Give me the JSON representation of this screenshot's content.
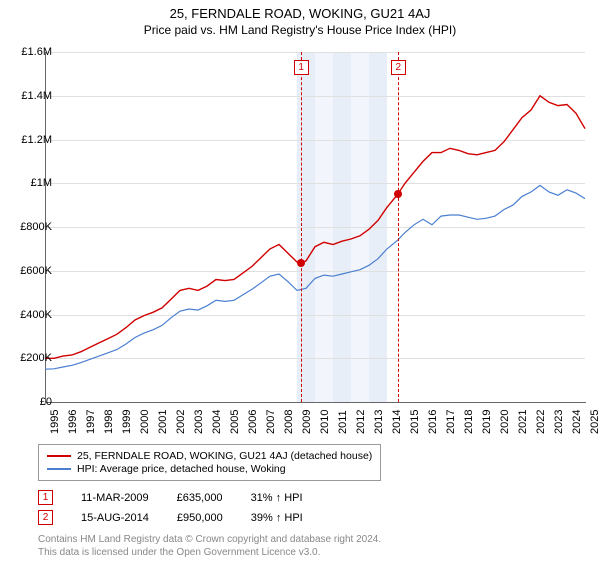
{
  "title": "25, FERNDALE ROAD, WOKING, GU21 4AJ",
  "subtitle": "Price paid vs. HM Land Registry's House Price Index (HPI)",
  "chart": {
    "type": "line",
    "x_start_year": 1995,
    "x_end_year": 2025,
    "xtick_step": 1,
    "ylim": [
      0,
      1600000
    ],
    "yticks": [
      0,
      200000,
      400000,
      600000,
      800000,
      1000000,
      1200000,
      1400000,
      1600000
    ],
    "ytick_labels": [
      "£0",
      "£200K",
      "£400K",
      "£600K",
      "£800K",
      "£1M",
      "£1.2M",
      "£1.4M",
      "£1.6M"
    ],
    "grid_color": "#e0e0e0",
    "background_bands": [
      {
        "from": 2009.0,
        "to": 2010.0,
        "color": "#e8eef8"
      },
      {
        "from": 2010.0,
        "to": 2011.0,
        "color": "#f2f5fb"
      },
      {
        "from": 2011.0,
        "to": 2012.0,
        "color": "#e8eef8"
      },
      {
        "from": 2012.0,
        "to": 2013.0,
        "color": "#f2f5fb"
      },
      {
        "from": 2013.0,
        "to": 2014.0,
        "color": "#e8eef8"
      }
    ],
    "markers": [
      {
        "label": "1",
        "year": 2009.2,
        "value": 635000
      },
      {
        "label": "2",
        "year": 2014.6,
        "value": 950000
      }
    ],
    "series": [
      {
        "name": "price",
        "label": "25, FERNDALE ROAD, WOKING, GU21 4AJ (detached house)",
        "color": "#d00000",
        "line_width": 1.4,
        "data": [
          [
            1995.0,
            200000
          ],
          [
            1995.5,
            200000
          ],
          [
            1996.0,
            210000
          ],
          [
            1996.5,
            215000
          ],
          [
            1997.0,
            230000
          ],
          [
            1997.5,
            250000
          ],
          [
            1998.0,
            270000
          ],
          [
            1998.5,
            290000
          ],
          [
            1999.0,
            310000
          ],
          [
            1999.5,
            340000
          ],
          [
            2000.0,
            375000
          ],
          [
            2000.5,
            395000
          ],
          [
            2001.0,
            410000
          ],
          [
            2001.5,
            430000
          ],
          [
            2002.0,
            470000
          ],
          [
            2002.5,
            510000
          ],
          [
            2003.0,
            520000
          ],
          [
            2003.5,
            510000
          ],
          [
            2004.0,
            530000
          ],
          [
            2004.5,
            560000
          ],
          [
            2005.0,
            555000
          ],
          [
            2005.5,
            560000
          ],
          [
            2006.0,
            590000
          ],
          [
            2006.5,
            620000
          ],
          [
            2007.0,
            660000
          ],
          [
            2007.5,
            700000
          ],
          [
            2008.0,
            720000
          ],
          [
            2008.5,
            680000
          ],
          [
            2009.0,
            640000
          ],
          [
            2009.2,
            635000
          ],
          [
            2009.5,
            645000
          ],
          [
            2010.0,
            710000
          ],
          [
            2010.5,
            730000
          ],
          [
            2011.0,
            720000
          ],
          [
            2011.5,
            735000
          ],
          [
            2012.0,
            745000
          ],
          [
            2012.5,
            760000
          ],
          [
            2013.0,
            790000
          ],
          [
            2013.5,
            830000
          ],
          [
            2014.0,
            890000
          ],
          [
            2014.6,
            950000
          ],
          [
            2015.0,
            1000000
          ],
          [
            2015.5,
            1050000
          ],
          [
            2016.0,
            1100000
          ],
          [
            2016.5,
            1140000
          ],
          [
            2017.0,
            1140000
          ],
          [
            2017.5,
            1160000
          ],
          [
            2018.0,
            1150000
          ],
          [
            2018.5,
            1135000
          ],
          [
            2019.0,
            1130000
          ],
          [
            2019.5,
            1140000
          ],
          [
            2020.0,
            1150000
          ],
          [
            2020.5,
            1190000
          ],
          [
            2021.0,
            1245000
          ],
          [
            2021.5,
            1300000
          ],
          [
            2022.0,
            1335000
          ],
          [
            2022.5,
            1400000
          ],
          [
            2023.0,
            1370000
          ],
          [
            2023.5,
            1355000
          ],
          [
            2024.0,
            1360000
          ],
          [
            2024.5,
            1320000
          ],
          [
            2025.0,
            1250000
          ]
        ]
      },
      {
        "name": "hpi",
        "label": "HPI: Average price, detached house, Woking",
        "color": "#4a7fd0",
        "line_width": 1.2,
        "data": [
          [
            1995.0,
            150000
          ],
          [
            1995.5,
            152000
          ],
          [
            1996.0,
            160000
          ],
          [
            1996.5,
            168000
          ],
          [
            1997.0,
            180000
          ],
          [
            1997.5,
            195000
          ],
          [
            1998.0,
            210000
          ],
          [
            1998.5,
            225000
          ],
          [
            1999.0,
            240000
          ],
          [
            1999.5,
            265000
          ],
          [
            2000.0,
            295000
          ],
          [
            2000.5,
            315000
          ],
          [
            2001.0,
            330000
          ],
          [
            2001.5,
            350000
          ],
          [
            2002.0,
            385000
          ],
          [
            2002.5,
            415000
          ],
          [
            2003.0,
            425000
          ],
          [
            2003.5,
            420000
          ],
          [
            2004.0,
            440000
          ],
          [
            2004.5,
            465000
          ],
          [
            2005.0,
            460000
          ],
          [
            2005.5,
            465000
          ],
          [
            2006.0,
            490000
          ],
          [
            2006.5,
            515000
          ],
          [
            2007.0,
            545000
          ],
          [
            2007.5,
            575000
          ],
          [
            2008.0,
            585000
          ],
          [
            2008.5,
            550000
          ],
          [
            2009.0,
            510000
          ],
          [
            2009.5,
            520000
          ],
          [
            2010.0,
            565000
          ],
          [
            2010.5,
            580000
          ],
          [
            2011.0,
            575000
          ],
          [
            2011.5,
            585000
          ],
          [
            2012.0,
            595000
          ],
          [
            2012.5,
            605000
          ],
          [
            2013.0,
            625000
          ],
          [
            2013.5,
            655000
          ],
          [
            2014.0,
            700000
          ],
          [
            2014.6,
            740000
          ],
          [
            2015.0,
            775000
          ],
          [
            2015.5,
            810000
          ],
          [
            2016.0,
            835000
          ],
          [
            2016.5,
            810000
          ],
          [
            2017.0,
            850000
          ],
          [
            2017.5,
            855000
          ],
          [
            2018.0,
            855000
          ],
          [
            2018.5,
            845000
          ],
          [
            2019.0,
            835000
          ],
          [
            2019.5,
            840000
          ],
          [
            2020.0,
            850000
          ],
          [
            2020.5,
            880000
          ],
          [
            2021.0,
            900000
          ],
          [
            2021.5,
            940000
          ],
          [
            2022.0,
            960000
          ],
          [
            2022.5,
            990000
          ],
          [
            2023.0,
            960000
          ],
          [
            2023.5,
            945000
          ],
          [
            2024.0,
            970000
          ],
          [
            2024.5,
            955000
          ],
          [
            2025.0,
            930000
          ]
        ]
      }
    ]
  },
  "sales": [
    {
      "idx": "1",
      "date": "11-MAR-2009",
      "price": "£635,000",
      "delta": "31% ↑ HPI"
    },
    {
      "idx": "2",
      "date": "15-AUG-2014",
      "price": "£950,000",
      "delta": "39% ↑ HPI"
    }
  ],
  "footnote_l1": "Contains HM Land Registry data © Crown copyright and database right 2024.",
  "footnote_l2": "This data is licensed under the Open Government Licence v3.0."
}
